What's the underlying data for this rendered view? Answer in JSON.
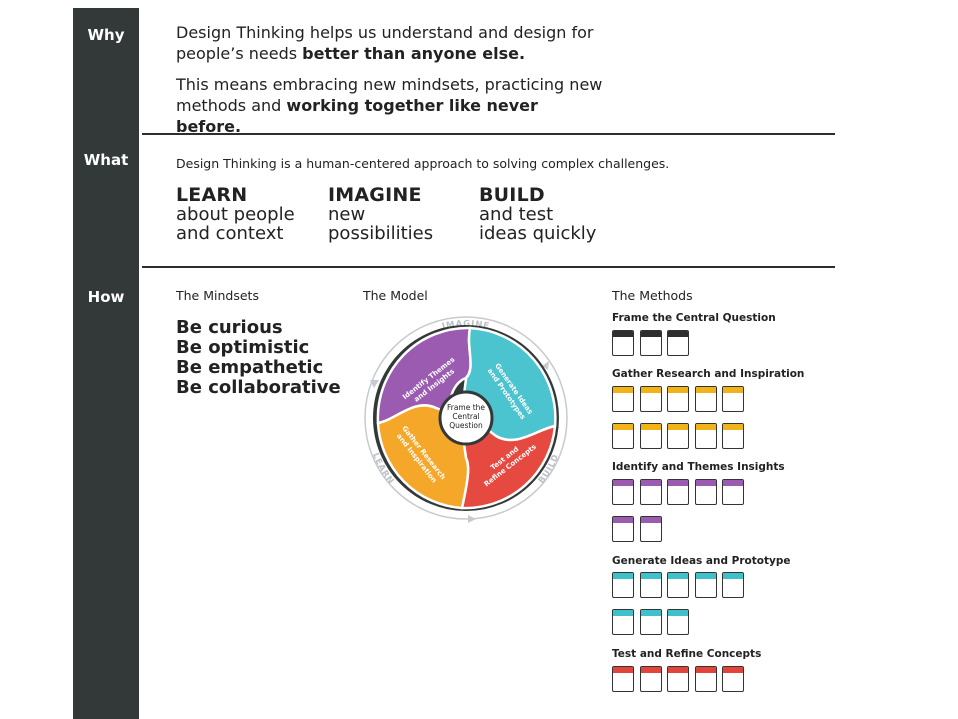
{
  "sections": {
    "why": {
      "label": "Why"
    },
    "what": {
      "label": "What"
    },
    "how": {
      "label": "How"
    }
  },
  "why": {
    "p1_plain": "Design Thinking helps us understand and design for people’s needs ",
    "p1_bold": "better than anyone else.",
    "p2_plain": "This means embracing new mindsets, practicing new methods and ",
    "p2_bold": "working together like never before."
  },
  "what": {
    "intro": "Design Thinking is a human-centered approach to solving complex challenges.",
    "pillars": [
      {
        "title": "LEARN",
        "line1": "about people",
        "line2": "and context"
      },
      {
        "title": "IMAGINE",
        "line1": "new",
        "line2": "possibilities"
      },
      {
        "title": "BUILD",
        "line1": "and test",
        "line2": "ideas quickly"
      }
    ]
  },
  "how": {
    "mindsets_title": "The Mindsets",
    "mindsets": [
      "Be curious",
      "Be optimistic",
      "Be empathetic",
      "Be collaborative"
    ],
    "model_title": "The Model",
    "model": {
      "outer_labels": {
        "imagine": "IMAGINE",
        "learn": "LEARN",
        "build": "BUILD"
      },
      "center": [
        "Frame the",
        "Central",
        "Question"
      ],
      "segments": {
        "identify": [
          "Identify Themes",
          "and Insights"
        ],
        "generate": [
          "Generate Ideas",
          "and Prototypes"
        ],
        "test": [
          "Test and",
          "Refine Concepts"
        ],
        "gather": [
          "Gather Research",
          "and Inspiration"
        ]
      },
      "colors": {
        "purple": "#9a5bb0",
        "teal": "#4bc4d0",
        "red": "#e5493f",
        "orange": "#f5a72a"
      }
    },
    "methods_title": "The Methods",
    "methods": [
      {
        "title": "Frame the Central Question",
        "color": "#2e2e2e",
        "count": 3
      },
      {
        "title": "Gather Research and Inspiration",
        "color": "#f2b318",
        "count": 10
      },
      {
        "title": "Identify and Themes Insights",
        "color": "#9a5bb0",
        "count": 7
      },
      {
        "title": "Generate Ideas and Prototype",
        "color": "#3fc1cb",
        "count": 8
      },
      {
        "title": "Test and Refine Concepts",
        "color": "#e2433a",
        "count": 5
      }
    ]
  }
}
